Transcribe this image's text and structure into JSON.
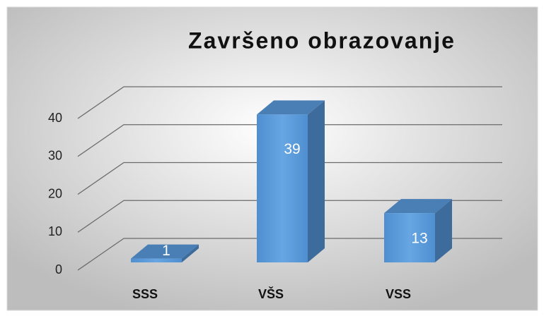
{
  "chart_data": {
    "type": "bar",
    "title": "Završeno obrazovanje",
    "categories": [
      "SSS",
      "VŠS",
      "VSS"
    ],
    "values": [
      1,
      39,
      13
    ],
    "color": "#5b9bd5",
    "ylim": [
      0,
      40
    ],
    "yticks": [
      0,
      10,
      20,
      30,
      40
    ],
    "grid": true
  }
}
